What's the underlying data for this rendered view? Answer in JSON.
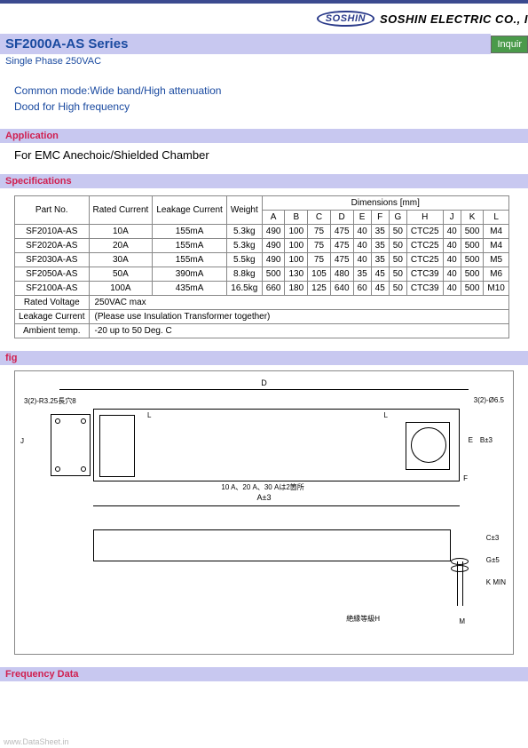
{
  "header": {
    "logo_text": "SOSHIN",
    "company": "SOSHIN ELECTRIC CO., I"
  },
  "series": {
    "title": "SF2000A-AS Series",
    "inquire": "Inquir",
    "subtitle": "Single Phase 250VAC"
  },
  "features": {
    "line1": "Common mode:Wide band/High attenuation",
    "line2": "Dood for High frequency"
  },
  "sections": {
    "application": "Application",
    "specifications": "Specifications",
    "fig": "fig",
    "frequency": "Frequency Data"
  },
  "application_text": "For EMC Anechoic/Shielded Chamber",
  "spec_table": {
    "headers": {
      "part_no": "Part No.",
      "rated_current": "Rated Current",
      "leakage_current": "Leakage Current",
      "weight": "Weight",
      "dimensions": "Dimensions [mm]",
      "cols": [
        "A",
        "B",
        "C",
        "D",
        "E",
        "F",
        "G",
        "H",
        "J",
        "K",
        "L"
      ]
    },
    "rows": [
      {
        "pn": "SF2010A-AS",
        "rc": "10A",
        "lc": "155mA",
        "w": "5.3kg",
        "d": [
          "490",
          "100",
          "75",
          "475",
          "40",
          "35",
          "50",
          "CTC25",
          "40",
          "500",
          "M4"
        ]
      },
      {
        "pn": "SF2020A-AS",
        "rc": "20A",
        "lc": "155mA",
        "w": "5.3kg",
        "d": [
          "490",
          "100",
          "75",
          "475",
          "40",
          "35",
          "50",
          "CTC25",
          "40",
          "500",
          "M4"
        ]
      },
      {
        "pn": "SF2030A-AS",
        "rc": "30A",
        "lc": "155mA",
        "w": "5.5kg",
        "d": [
          "490",
          "100",
          "75",
          "475",
          "40",
          "35",
          "50",
          "CTC25",
          "40",
          "500",
          "M5"
        ]
      },
      {
        "pn": "SF2050A-AS",
        "rc": "50A",
        "lc": "390mA",
        "w": "8.8kg",
        "d": [
          "500",
          "130",
          "105",
          "480",
          "35",
          "45",
          "50",
          "CTC39",
          "40",
          "500",
          "M6"
        ]
      },
      {
        "pn": "SF2100A-AS",
        "rc": "100A",
        "lc": "435mA",
        "w": "16.5kg",
        "d": [
          "660",
          "180",
          "125",
          "640",
          "60",
          "45",
          "50",
          "CTC39",
          "40",
          "500",
          "M10"
        ]
      }
    ],
    "footer": {
      "rated_voltage_label": "Rated Voltage",
      "rated_voltage_value": "250VAC max",
      "leakage_label": "Leakage Current",
      "leakage_value": "(Please use Insulation Transformer together)",
      "ambient_label": "Ambient temp.",
      "ambient_value": "-20 up to 50 Deg. C"
    }
  },
  "fig": {
    "dim_D": "D",
    "dim_A": "A±3",
    "note_left": "3(2)-R3.25長穴8",
    "note_right": "3(2)-Ø6.5",
    "note_mid": "10 A、20 A、30 Aは2箇所",
    "side_C": "C±3",
    "side_G": "G±5",
    "side_K": "K MIN",
    "side_B": "B±3",
    "side_E": "E",
    "side_F": "F",
    "side_J": "J",
    "side_L": "L",
    "side_M": "M",
    "bottom_note": "絶縁等級H"
  },
  "footer_watermark": "www.DataSheet.in"
}
